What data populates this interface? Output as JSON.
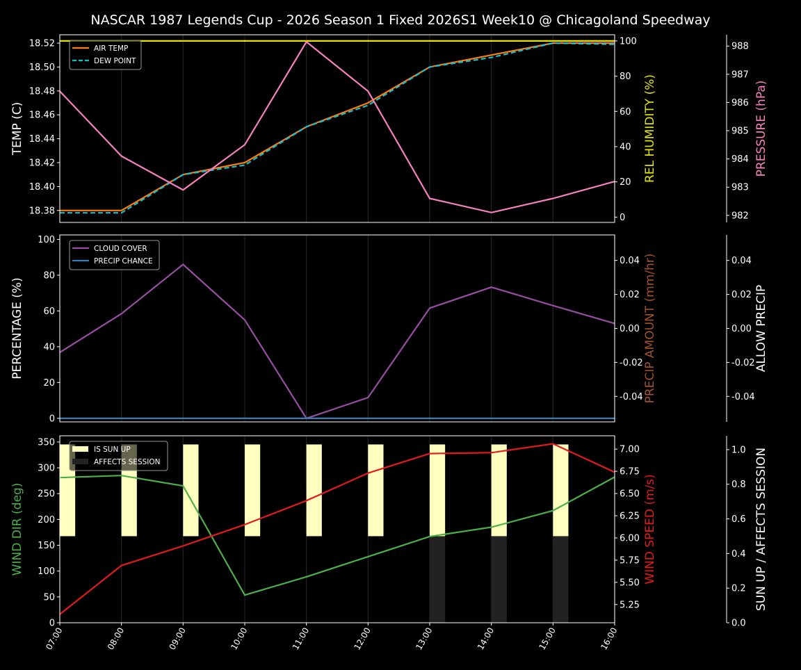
{
  "chart_data": {
    "title": "NASCAR 1987 Legends Cup  - 2026 Season 1 Fixed 2026S1 Week10 @ Chicagoland Speedway",
    "x": [
      "07:00",
      "08:00",
      "09:00",
      "10:00",
      "11:00",
      "12:00",
      "13:00",
      "14:00",
      "15:00",
      "16:00"
    ],
    "panels": [
      {
        "type": "line",
        "ylabel": "TEMP (C)",
        "ylim": [
          18.37,
          18.527
        ],
        "yticks": [
          18.38,
          18.4,
          18.42,
          18.44,
          18.46,
          18.48,
          18.5,
          18.52
        ],
        "legend_placement": "upper-left",
        "series": [
          {
            "name": "AIR TEMP",
            "axis": "left",
            "color": "#ff7f0e",
            "style": "solid",
            "values": [
              18.38,
              18.38,
              18.41,
              18.42,
              18.45,
              18.47,
              18.5,
              18.51,
              18.52,
              18.52
            ]
          },
          {
            "name": "DEW POINT",
            "axis": "left",
            "color": "#17becf",
            "style": "dashed",
            "values": [
              18.378,
              18.378,
              18.41,
              18.418,
              18.45,
              18.468,
              18.5,
              18.508,
              18.52,
              18.519
            ]
          },
          {
            "axis": "right1",
            "color": "#e5e500",
            "style": "solid",
            "values": [
              100,
              100,
              100,
              100,
              100,
              100,
              100,
              100,
              100,
              100
            ]
          },
          {
            "axis": "right2",
            "color": "#f781bf",
            "style": "solid",
            "values": [
              986.4,
              984.1,
              982.9,
              984.5,
              988.15,
              986.4,
              982.6,
              982.1,
              982.6,
              983.2
            ]
          }
        ],
        "right1": {
          "label": "REL HUMIDITY (%)",
          "color": "#e5e500",
          "ylim": [
            -3,
            103.5
          ],
          "yticks": [
            0,
            20,
            40,
            60,
            80,
            100
          ]
        },
        "right2": {
          "label": "PRESSURE (hPa)",
          "color": "#f781bf",
          "ylim": [
            981.75,
            988.4
          ],
          "yticks": [
            982,
            983,
            984,
            985,
            986,
            987,
            988
          ]
        }
      },
      {
        "type": "line",
        "ylabel": "PERCENTAGE (%)",
        "ylim": [
          -2,
          102.5
        ],
        "yticks": [
          0,
          20,
          40,
          60,
          80,
          100
        ],
        "legend_placement": "upper-left",
        "series": [
          {
            "name": "CLOUD COVER",
            "axis": "left",
            "color": "#984ea3",
            "style": "solid",
            "values": [
              36.8,
              58.5,
              86,
              55,
              0,
              11.6,
              61.6,
              73.3,
              63,
              53
            ]
          },
          {
            "name": "PRECIP CHANCE",
            "axis": "left",
            "color": "#377eb8",
            "style": "solid",
            "values": [
              0,
              0,
              0,
              0,
              0,
              0,
              0,
              0,
              0,
              0
            ]
          }
        ],
        "right1": {
          "label": "PRECIP AMOUNT (mm/hr)",
          "color": "#a0522d",
          "ylim": [
            -0.055,
            0.055
          ],
          "yticks": [
            -0.04,
            -0.02,
            0.0,
            0.02,
            0.04
          ]
        },
        "right2": {
          "label": "ALLOW PRECIP",
          "color": "#ffffff",
          "ylim": [
            -0.055,
            0.055
          ],
          "yticks": [
            -0.04,
            -0.02,
            0.0,
            0.02,
            0.04
          ]
        }
      },
      {
        "type": "line",
        "ylabel": "WIND DIR (deg)",
        "ylabel_color": "#4daf4a",
        "ylim": [
          0,
          362
        ],
        "yticks": [
          0,
          50,
          100,
          150,
          200,
          250,
          300,
          350
        ],
        "legend_placement": "upper-left",
        "bars": [
          {
            "name": "IS SUN UP",
            "color": "#ffffc0",
            "values": [
              1,
              1,
              1,
              1,
              1,
              1,
              1,
              1,
              1,
              0
            ]
          },
          {
            "name": "AFFECTS SESSION",
            "color": "#222222",
            "values": [
              0,
              0,
              0,
              0,
              0,
              0,
              1,
              1,
              1,
              0
            ]
          }
        ],
        "series": [
          {
            "axis": "left",
            "color": "#4daf4a",
            "style": "solid",
            "values": [
              281,
              285,
              265,
              53.5,
              89,
              128,
              167,
              185,
              217,
              282
            ]
          },
          {
            "axis": "right1",
            "color": "#e41a1c",
            "style": "solid",
            "values": [
              5.14,
              5.69,
              5.91,
              6.15,
              6.42,
              6.73,
              6.95,
              6.96,
              7.06,
              6.74
            ]
          }
        ],
        "right1": {
          "label": "WIND SPEED (m/s)",
          "color": "#e41a1c",
          "ylim": [
            5.045,
            7.15
          ],
          "yticks": [
            5.25,
            5.5,
            5.75,
            6.0,
            6.25,
            6.5,
            6.75,
            7.0
          ]
        },
        "right2": {
          "label": "SUN UP / AFFECTS SESSION",
          "color": "#ffffff",
          "ylim": [
            0,
            1.08
          ],
          "yticks": [
            0.0,
            0.2,
            0.4,
            0.6,
            0.8,
            1.0
          ]
        }
      }
    ]
  }
}
